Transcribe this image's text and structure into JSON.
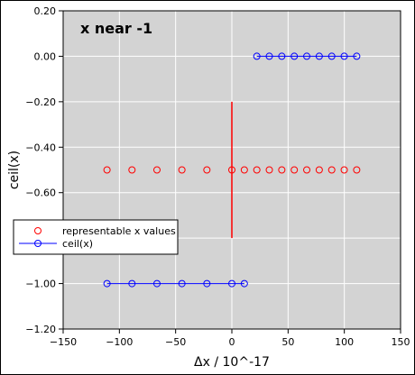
{
  "chart_data": {
    "type": "scatter",
    "title": "x near -1",
    "xlabel": "Δx /  10^-17",
    "ylabel": "ceil(x)",
    "xlim": [
      -150,
      150
    ],
    "ylim": [
      -1.2,
      0.2
    ],
    "xticks": [
      -150,
      -100,
      -50,
      0,
      50,
      100,
      150
    ],
    "xtick_labels": [
      "−150",
      "−100",
      "−50",
      "0",
      "50",
      "100",
      "150"
    ],
    "yticks": [
      0.2,
      0.0,
      -0.2,
      -0.4,
      -0.6,
      -0.8,
      -1.0,
      -1.2
    ],
    "ytick_labels": [
      "0.20",
      "0.00",
      "−0.20",
      "−0.40",
      "−0.60",
      "−0.80",
      "−1.00",
      "−1.20"
    ],
    "grid": true,
    "legend_position": "left",
    "series": [
      {
        "name": "representable x values",
        "color": "#ff0000",
        "marker": "circle",
        "line": false,
        "x": [
          -111,
          -88.8,
          -66.6,
          -44.4,
          -22.2,
          0,
          11.1,
          22.2,
          33.3,
          44.4,
          55.5,
          66.6,
          77.7,
          88.8,
          99.9,
          111
        ],
        "y": [
          -0.5,
          -0.5,
          -0.5,
          -0.5,
          -0.5,
          -0.5,
          -0.5,
          -0.5,
          -0.5,
          -0.5,
          -0.5,
          -0.5,
          -0.5,
          -0.5,
          -0.5,
          -0.5
        ]
      },
      {
        "name": "ceil(x)",
        "color": "#0000ff",
        "marker": "circle",
        "line": true,
        "segments": [
          {
            "x": [
              -111,
              -88.8,
              -66.6,
              -44.4,
              -22.2,
              0,
              11.1
            ],
            "y": [
              -1.0,
              -1.0,
              -1.0,
              -1.0,
              -1.0,
              -1.0,
              -1.0
            ]
          },
          {
            "x": [
              22.2,
              33.3,
              44.4,
              55.5,
              66.6,
              77.7,
              88.8,
              99.9,
              111
            ],
            "y": [
              0.0,
              0.0,
              0.0,
              0.0,
              0.0,
              0.0,
              0.0,
              0.0,
              0.0
            ]
          }
        ]
      }
    ],
    "annotations": [
      {
        "type": "vline",
        "x": 0,
        "y_from": -0.2,
        "y_to": -0.8,
        "color": "#ff0000"
      }
    ]
  },
  "colors": {
    "plot_background": "#d3d3d3",
    "grid": "#ffffff"
  }
}
